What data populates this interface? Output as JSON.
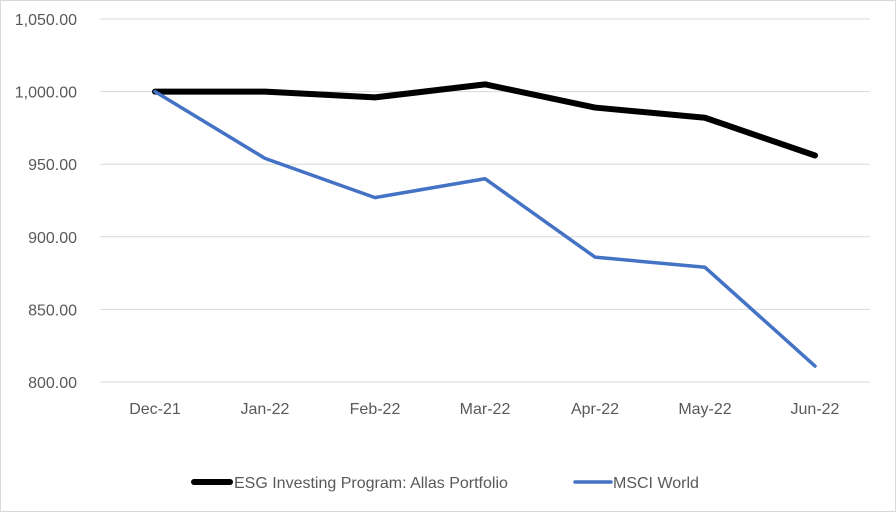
{
  "chart_data": {
    "type": "line",
    "categories": [
      "Dec-21",
      "Jan-22",
      "Feb-22",
      "Mar-22",
      "Apr-22",
      "May-22",
      "Jun-22"
    ],
    "ylim": [
      800,
      1050
    ],
    "yticks": [
      "800.00",
      "850.00",
      "900.00",
      "950.00",
      "1,000.00",
      "1,050.00"
    ],
    "ytick_values": [
      800,
      850,
      900,
      950,
      1000,
      1050
    ],
    "grid": true,
    "legend_position": "bottom",
    "series": [
      {
        "name": "ESG Investing Program: Allas Portfolio",
        "color": "#000000",
        "values": [
          1000,
          1000,
          996,
          1005,
          989,
          982,
          956
        ]
      },
      {
        "name": "MSCI World",
        "color": "#4472c4",
        "values": [
          1000,
          954,
          927,
          940,
          886,
          879,
          811
        ]
      }
    ]
  }
}
